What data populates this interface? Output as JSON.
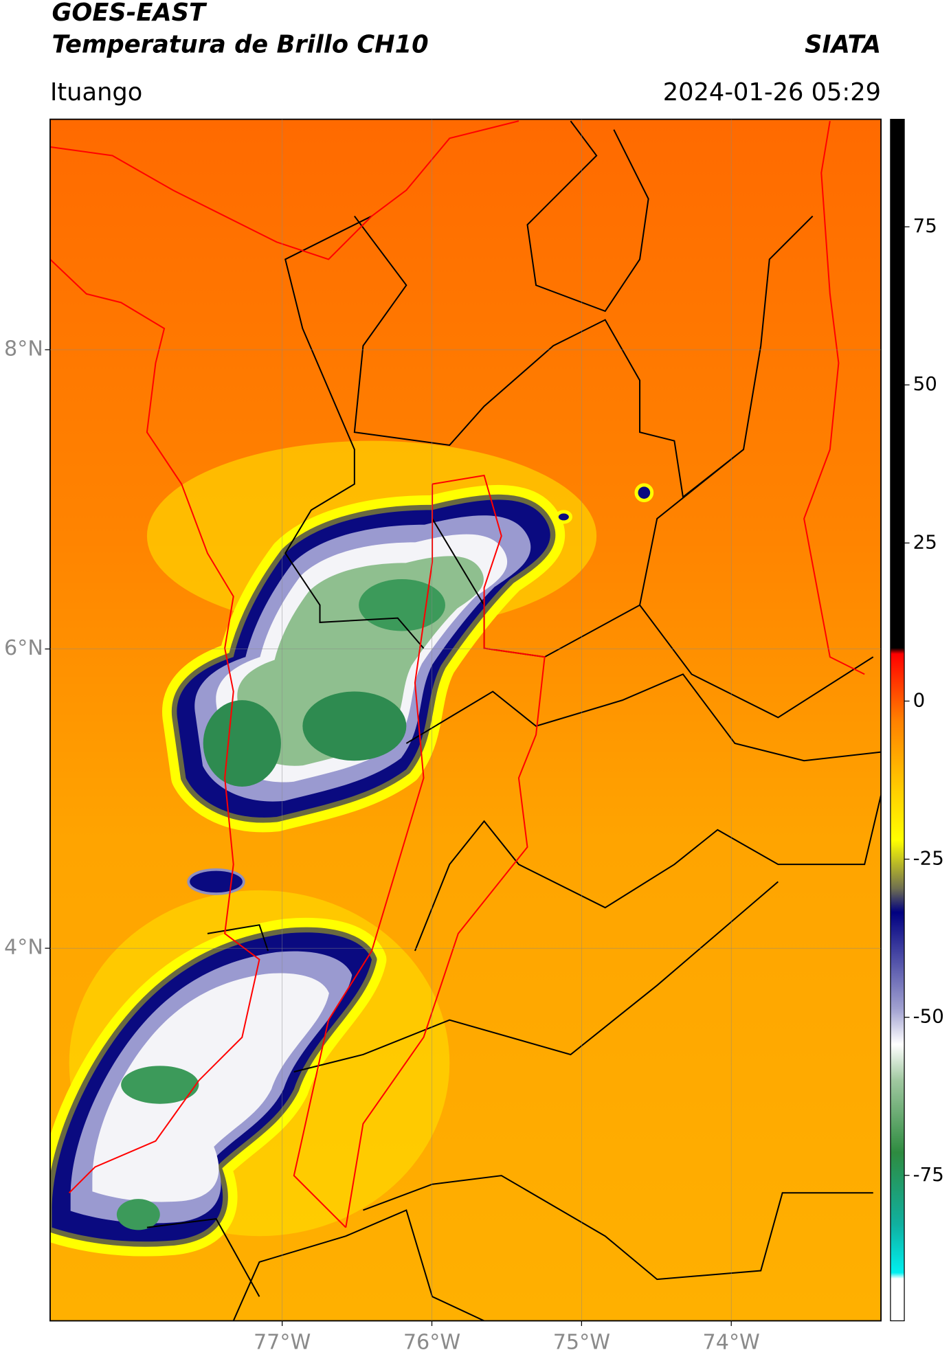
{
  "header": {
    "satellite": "GOES-EAST",
    "product": "Temperatura de Brillo CH10",
    "source": "SIATA",
    "location": "Ituango",
    "datetime": "2024-01-26 05:29"
  },
  "map": {
    "xlim": [
      -78.55,
      -73.0
    ],
    "ylim": [
      1.51,
      9.54
    ],
    "lon_ticks": [
      {
        "value": -77,
        "label": "77°W"
      },
      {
        "value": -76,
        "label": "76°W"
      },
      {
        "value": -75,
        "label": "75°W"
      },
      {
        "value": -74,
        "label": "74°W"
      }
    ],
    "lat_ticks": [
      {
        "value": 8,
        "label": "8°N"
      },
      {
        "value": 6,
        "label": "6°N"
      },
      {
        "value": 4,
        "label": "4°N"
      }
    ]
  },
  "colorbar": {
    "lim": [
      -98,
      92
    ],
    "ticks": [
      75,
      50,
      25,
      0,
      -25,
      -50,
      -75
    ]
  }
}
